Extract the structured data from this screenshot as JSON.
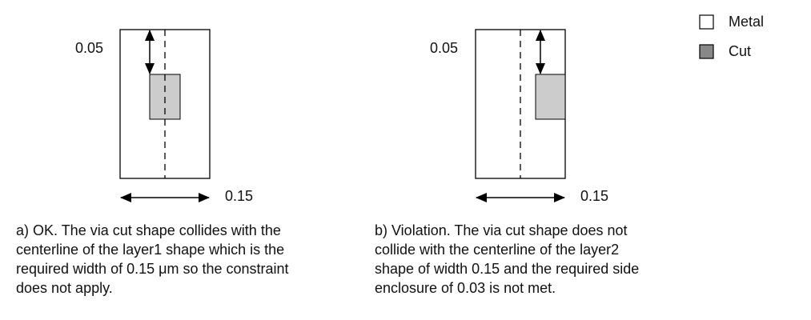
{
  "legend": {
    "metal_label": "Metal",
    "cut_label": "Cut",
    "metal_color": "#ffffff",
    "cut_color": "#888888"
  },
  "colors": {
    "cut_fill": "#cccccc",
    "stroke": "#000000"
  },
  "panel_a": {
    "top_dimension": "0.05",
    "width_dimension": "0.15",
    "caption_lines": [
      "a) OK. The via cut shape collides with the",
      "centerline of the layer1 shape which is the",
      "required width of 0.15 μm so the constraint",
      "does not apply."
    ]
  },
  "panel_b": {
    "top_dimension": "0.05",
    "width_dimension": "0.15",
    "caption_lines": [
      "b) Violation. The via cut shape does not",
      "collide with the centerline of the layer2",
      "shape of width 0.15 and the required side",
      "enclosure of 0.03 is not met."
    ]
  }
}
